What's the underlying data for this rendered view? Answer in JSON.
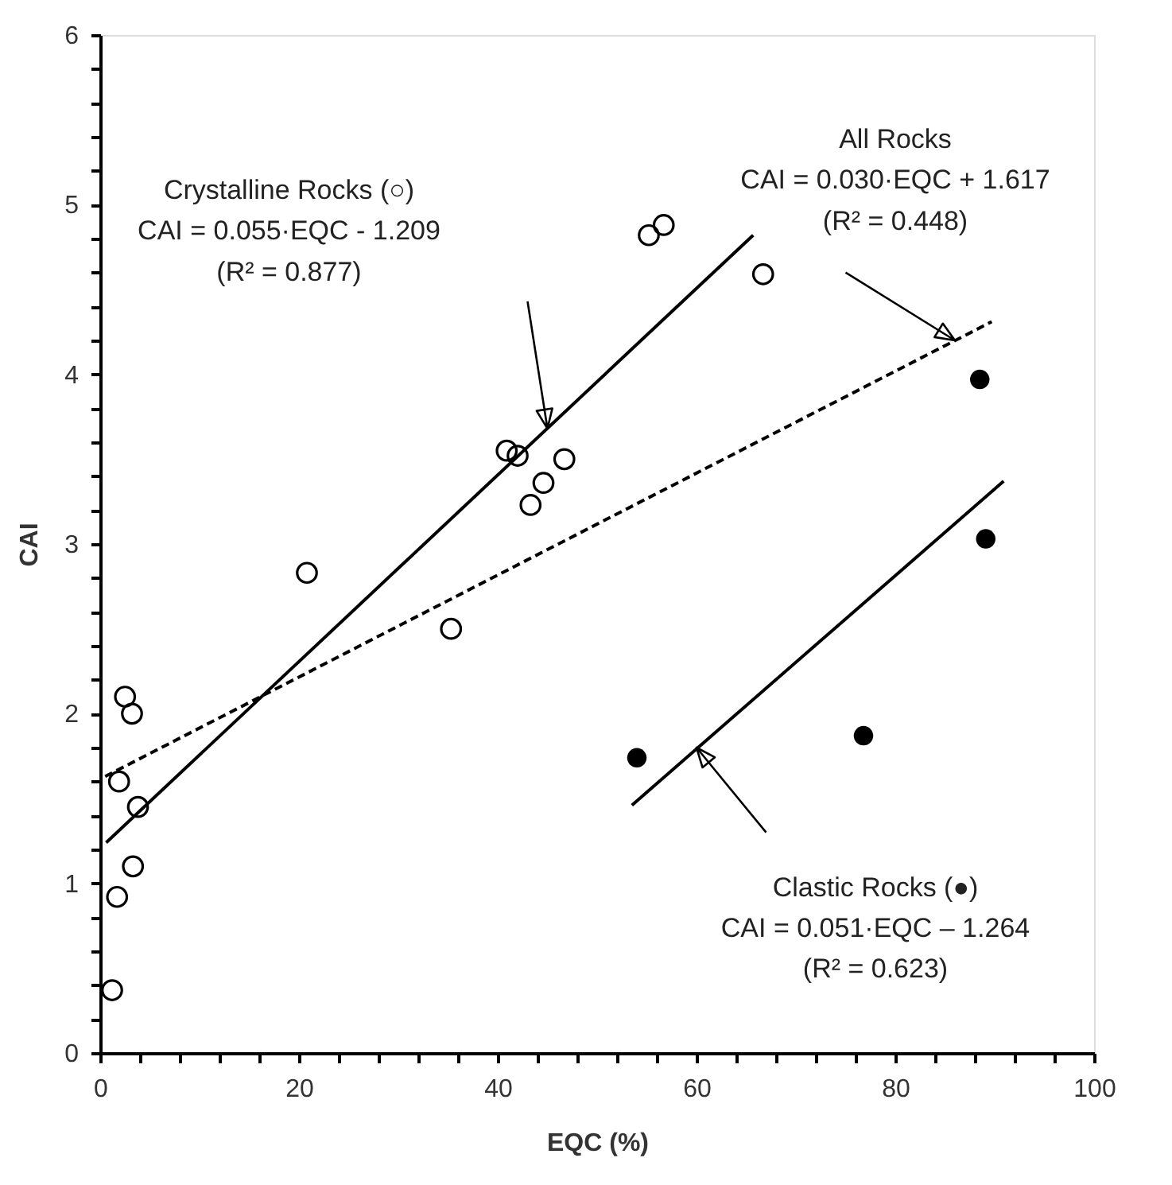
{
  "chart_data": {
    "type": "scatter",
    "xlabel": "EQC (%)",
    "ylabel": "CAI",
    "xlim": [
      0,
      100
    ],
    "ylim": [
      0,
      6
    ],
    "xticks": [
      0,
      {
        "value": 4,
        "label": null
      },
      {
        "value": 8,
        "label": null
      },
      {
        "value": 12,
        "label": null
      },
      {
        "value": 16,
        "label": null
      },
      20,
      {
        "value": 24,
        "label": null
      },
      {
        "value": 28,
        "label": null
      },
      {
        "value": 32,
        "label": null
      },
      {
        "value": 36,
        "label": null
      },
      40,
      {
        "value": 44,
        "label": null
      },
      {
        "value": 48,
        "label": null
      },
      {
        "value": 52,
        "label": null
      },
      {
        "value": 56,
        "label": null
      },
      60,
      {
        "value": 64,
        "label": null
      },
      {
        "value": 68,
        "label": null
      },
      {
        "value": 72,
        "label": null
      },
      {
        "value": 76,
        "label": null
      },
      80,
      {
        "value": 84,
        "label": null
      },
      {
        "value": 88,
        "label": null
      },
      {
        "value": 92,
        "label": null
      },
      {
        "value": 96,
        "label": null
      },
      100
    ],
    "yticks": [
      0,
      {
        "value": 0.2,
        "label": null
      },
      {
        "value": 0.4,
        "label": null
      },
      {
        "value": 0.6,
        "label": null
      },
      {
        "value": 0.8,
        "label": null
      },
      1,
      {
        "value": 1.2,
        "label": null
      },
      {
        "value": 1.4,
        "label": null
      },
      {
        "value": 1.6,
        "label": null
      },
      {
        "value": 1.8,
        "label": null
      },
      2,
      {
        "value": 2.2,
        "label": null
      },
      {
        "value": 2.4,
        "label": null
      },
      {
        "value": 2.6,
        "label": null
      },
      {
        "value": 2.8,
        "label": null
      },
      3,
      {
        "value": 3.2,
        "label": null
      },
      {
        "value": 3.4,
        "label": null
      },
      {
        "value": 3.6,
        "label": null
      },
      {
        "value": 3.8,
        "label": null
      },
      4,
      {
        "value": 4.2,
        "label": null
      },
      {
        "value": 4.4,
        "label": null
      },
      {
        "value": 4.6,
        "label": null
      },
      {
        "value": 4.8,
        "label": null
      },
      5,
      {
        "value": 5.2,
        "label": null
      },
      {
        "value": 5.4,
        "label": null
      },
      {
        "value": 5.6,
        "label": null
      },
      {
        "value": 5.8,
        "label": null
      },
      6
    ],
    "grid": false,
    "series": [
      {
        "type": "scatter",
        "marker": "circle",
        "color": "#000000",
        "x": [
          2.5,
          3.2,
          1.9,
          3.8,
          3.3,
          1.7,
          1.2,
          20.8,
          35.3,
          40.9,
          42.0,
          46.7,
          44.6,
          43.3,
          55.2,
          56.7,
          66.7
        ],
        "values": [
          2.1,
          2.0,
          1.6,
          1.45,
          1.1,
          0.92,
          0.37,
          2.83,
          2.5,
          3.55,
          3.52,
          3.5,
          3.36,
          3.23,
          4.82,
          4.88,
          4.59
        ]
      },
      {
        "type": "scatter",
        "marker": "circle",
        "color": "#000000",
        "x": [
          54.0,
          76.8,
          88.5,
          89.1
        ],
        "values": [
          1.74,
          1.87,
          3.97,
          3.03
        ]
      },
      {
        "type": "line",
        "color": "#000000",
        "line_style": "solid",
        "x": [
          0.6,
          65.7
        ],
        "values": [
          1.24,
          4.82
        ]
      },
      {
        "type": "line",
        "color": "#000000",
        "line_style": "dashed",
        "x": [
          0.5,
          89.7
        ],
        "values": [
          1.63,
          4.31
        ]
      },
      {
        "type": "line",
        "color": "#000000",
        "line_style": "solid",
        "x": [
          53.5,
          90.9
        ],
        "values": [
          1.46,
          3.37
        ]
      }
    ],
    "annotations": [
      "Crystalline Rocks (○)\nCAI = 0.055·EQC - 1.209\n(R² = 0.877)",
      "All Rocks\nCAI = 0.030·EQC + 1.617\n(R² = 0.448)",
      "Clastic Rocks (●)\nCAI = 0.051·EQC – 1.264\n(R² = 0.623)"
    ]
  }
}
